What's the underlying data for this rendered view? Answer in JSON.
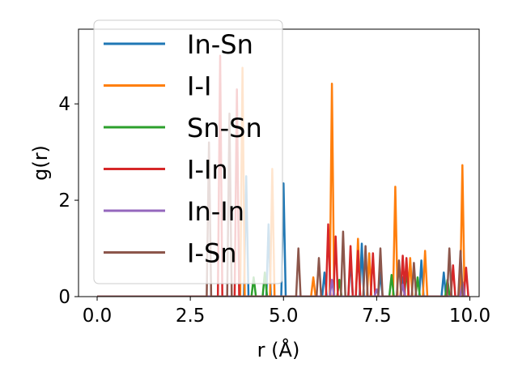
{
  "chart_data": {
    "type": "line",
    "xlabel": "r (Å)",
    "ylabel": "g(r)",
    "xlim": [
      -0.5,
      10.25
    ],
    "ylim": [
      0,
      5.55
    ],
    "xticks": [
      {
        "value": 0.0,
        "label": "0.0"
      },
      {
        "value": 2.5,
        "label": "2.5"
      },
      {
        "value": 5.0,
        "label": "5.0"
      },
      {
        "value": 7.5,
        "label": "7.5"
      },
      {
        "value": 10.0,
        "label": "10.0"
      }
    ],
    "yticks": [
      {
        "value": 0,
        "label": "0"
      },
      {
        "value": 2,
        "label": "2"
      },
      {
        "value": 4,
        "label": "4"
      }
    ],
    "legend_position": "upper-left",
    "series": [
      {
        "name": "In-Sn",
        "color": "#1f77b4",
        "peaks": [
          [
            4.0,
            2.5
          ],
          [
            4.6,
            1.5
          ],
          [
            5.0,
            2.35
          ],
          [
            6.1,
            0.5
          ],
          [
            6.8,
            0.8
          ],
          [
            7.1,
            1.1
          ],
          [
            7.6,
            0.5
          ],
          [
            8.2,
            0.4
          ],
          [
            8.7,
            0.75
          ],
          [
            9.3,
            0.5
          ]
        ]
      },
      {
        "name": "I-I",
        "color": "#ff7f0e",
        "peaks": [
          [
            3.9,
            4.75
          ],
          [
            4.7,
            2.65
          ],
          [
            5.8,
            0.4
          ],
          [
            6.3,
            4.42
          ],
          [
            7.0,
            1.2
          ],
          [
            7.3,
            0.9
          ],
          [
            8.0,
            2.28
          ],
          [
            8.4,
            0.8
          ],
          [
            8.8,
            0.95
          ],
          [
            9.8,
            2.73
          ]
        ]
      },
      {
        "name": "Sn-Sn",
        "color": "#2ca02c",
        "peaks": [
          [
            4.2,
            0.4
          ],
          [
            4.5,
            0.5
          ],
          [
            6.5,
            0.35
          ],
          [
            7.9,
            0.45
          ],
          [
            8.3,
            0.55
          ],
          [
            8.6,
            0.4
          ],
          [
            9.4,
            0.35
          ]
        ]
      },
      {
        "name": "I-In",
        "color": "#d62728",
        "peaks": [
          [
            3.3,
            5.0
          ],
          [
            3.75,
            4.3
          ],
          [
            6.2,
            1.5
          ],
          [
            6.4,
            1.25
          ],
          [
            6.8,
            1.05
          ],
          [
            7.0,
            0.95
          ],
          [
            7.4,
            0.9
          ],
          [
            8.2,
            0.85
          ],
          [
            8.3,
            0.8
          ],
          [
            9.55,
            0.65
          ],
          [
            9.9,
            0.6
          ]
        ]
      },
      {
        "name": "In-In",
        "color": "#9467bd",
        "peaks": [
          [
            6.3,
            0.35
          ],
          [
            7.5,
            0.15
          ],
          [
            8.2,
            0.25
          ],
          [
            9.8,
            0.3
          ]
        ]
      },
      {
        "name": "I-Sn",
        "color": "#8c564b",
        "peaks": [
          [
            3.0,
            3.2
          ],
          [
            3.55,
            3.8
          ],
          [
            5.4,
            1.0
          ],
          [
            5.95,
            0.8
          ],
          [
            6.6,
            1.35
          ],
          [
            7.2,
            1.05
          ],
          [
            7.6,
            1.0
          ],
          [
            8.1,
            0.75
          ],
          [
            8.5,
            0.7
          ],
          [
            9.45,
            1.0
          ],
          [
            9.75,
            0.95
          ]
        ]
      }
    ]
  }
}
